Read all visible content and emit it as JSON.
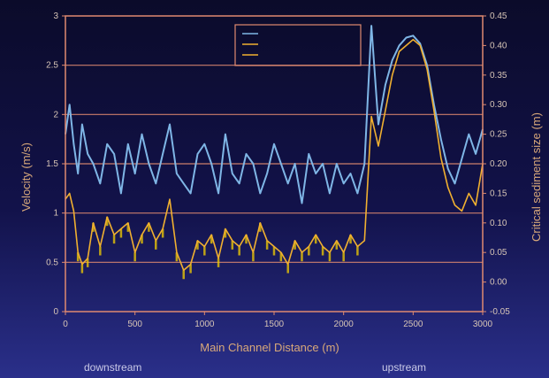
{
  "chart_data": {
    "type": "line",
    "title": "",
    "xlabel": "Main Channel Distance (m)",
    "ylabel_left": "Velocity (m/s)",
    "ylabel_right": "Critical sediment size (m)",
    "xlim": [
      0,
      3000
    ],
    "ylim_left": [
      0,
      3
    ],
    "ylim_right": [
      -0.05,
      0.45
    ],
    "x_ticks": [
      "0",
      "500",
      "1000",
      "1500",
      "2000",
      "2500",
      "3000"
    ],
    "y_left_ticks": [
      "0",
      "0.5",
      "1",
      "1.5",
      "2",
      "2.5",
      "3"
    ],
    "y_right_ticks": [
      "-0.05",
      "0.00",
      "0.05",
      "0.10",
      "0.15",
      "0.20",
      "0.25",
      "0.30",
      "0.35",
      "0.40",
      "0.45"
    ],
    "annotations": [
      "downstream",
      "upstream"
    ],
    "legend_placement": "top-center",
    "grid": "horizontal",
    "colors": {
      "velocity": "#7fb6e6",
      "sediment": "#f0b030",
      "sediment_fill": "#f5d000",
      "frame": "#e08a70"
    },
    "series": [
      {
        "axis": "left",
        "x": [
          0,
          30,
          60,
          90,
          120,
          160,
          200,
          250,
          300,
          350,
          400,
          450,
          500,
          550,
          600,
          650,
          700,
          750,
          800,
          850,
          900,
          950,
          1000,
          1050,
          1100,
          1150,
          1200,
          1250,
          1300,
          1350,
          1400,
          1450,
          1500,
          1550,
          1600,
          1650,
          1700,
          1750,
          1800,
          1850,
          1900,
          1950,
          2000,
          2050,
          2100,
          2150,
          2200,
          2250,
          2300,
          2350,
          2400,
          2450,
          2500,
          2550,
          2600,
          2650,
          2700,
          2750,
          2800,
          2850,
          2900,
          2950,
          3000
        ],
        "values": [
          1.8,
          2.1,
          1.7,
          1.4,
          1.9,
          1.6,
          1.5,
          1.3,
          1.7,
          1.6,
          1.2,
          1.7,
          1.4,
          1.8,
          1.5,
          1.3,
          1.6,
          1.9,
          1.4,
          1.3,
          1.2,
          1.6,
          1.7,
          1.5,
          1.2,
          1.8,
          1.4,
          1.3,
          1.6,
          1.5,
          1.2,
          1.4,
          1.7,
          1.5,
          1.3,
          1.5,
          1.1,
          1.6,
          1.4,
          1.5,
          1.2,
          1.5,
          1.3,
          1.4,
          1.2,
          1.5,
          2.9,
          1.9,
          2.3,
          2.55,
          2.7,
          2.78,
          2.8,
          2.72,
          2.5,
          2.1,
          1.75,
          1.45,
          1.3,
          1.55,
          1.8,
          1.6,
          1.85
        ]
      },
      {
        "axis": "right",
        "x": [
          0,
          30,
          60,
          90,
          120,
          160,
          200,
          250,
          300,
          350,
          400,
          450,
          500,
          550,
          600,
          650,
          700,
          750,
          800,
          850,
          900,
          950,
          1000,
          1050,
          1100,
          1150,
          1200,
          1250,
          1300,
          1350,
          1400,
          1450,
          1500,
          1550,
          1600,
          1650,
          1700,
          1750,
          1800,
          1850,
          1900,
          1950,
          2000,
          2050,
          2100,
          2150,
          2200,
          2250,
          2300,
          2350,
          2400,
          2450,
          2500,
          2550,
          2600,
          2650,
          2700,
          2750,
          2800,
          2850,
          2900,
          2950,
          3000
        ],
        "values": [
          0.14,
          0.15,
          0.12,
          0.05,
          0.03,
          0.04,
          0.1,
          0.06,
          0.11,
          0.08,
          0.09,
          0.1,
          0.05,
          0.08,
          0.1,
          0.07,
          0.09,
          0.14,
          0.05,
          0.02,
          0.03,
          0.07,
          0.06,
          0.08,
          0.04,
          0.09,
          0.07,
          0.06,
          0.08,
          0.05,
          0.1,
          0.07,
          0.06,
          0.05,
          0.03,
          0.07,
          0.05,
          0.06,
          0.08,
          0.06,
          0.05,
          0.07,
          0.05,
          0.08,
          0.06,
          0.07,
          0.28,
          0.23,
          0.29,
          0.35,
          0.39,
          0.4,
          0.41,
          0.4,
          0.36,
          0.29,
          0.21,
          0.16,
          0.13,
          0.12,
          0.15,
          0.13,
          0.2
        ]
      }
    ]
  }
}
